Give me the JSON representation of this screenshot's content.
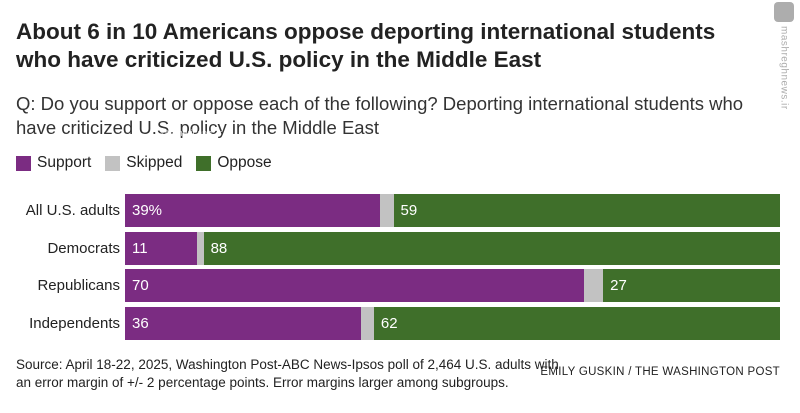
{
  "title": "About 6 in 10 Americans oppose deporting international students who have criticized U.S. policy in the Middle East",
  "question": "Q: Do you support or oppose each of the following? Deporting international students who have criticized U.S. policy in the Middle East",
  "legend": [
    {
      "label": "Support",
      "color": "#7b2c82"
    },
    {
      "label": "Skipped",
      "color": "#c2c2c2"
    },
    {
      "label": "Oppose",
      "color": "#3f6f2a"
    }
  ],
  "chart_data": {
    "type": "bar",
    "orientation": "horizontal",
    "stacked": true,
    "categories": [
      "All U.S. adults",
      "Democrats",
      "Republicans",
      "Independents"
    ],
    "series": [
      {
        "name": "Support",
        "color": "#7b2c82",
        "values": [
          39,
          11,
          70,
          36
        ],
        "labels": [
          "39%",
          "11",
          "70",
          "36"
        ]
      },
      {
        "name": "Skipped",
        "color": "#c2c2c2",
        "values": [
          2,
          1,
          3,
          2
        ],
        "labels": [
          "",
          "",
          "",
          ""
        ]
      },
      {
        "name": "Oppose",
        "color": "#3f6f2a",
        "values": [
          59,
          88,
          27,
          62
        ],
        "labels": [
          "59",
          "88",
          "27",
          "62"
        ]
      }
    ],
    "xlim": [
      0,
      100
    ]
  },
  "inline_watermark": "@Americana_ir",
  "side_watermark": "mashreghnews.ir",
  "source": "Source: April 18-22, 2025, Washington Post-ABC News-Ipsos poll of 2,464 U.S. adults with an error margin of +/- 2 percentage points. Error margins larger among subgroups.",
  "credit": "EMILY GUSKIN / THE WASHINGTON POST"
}
